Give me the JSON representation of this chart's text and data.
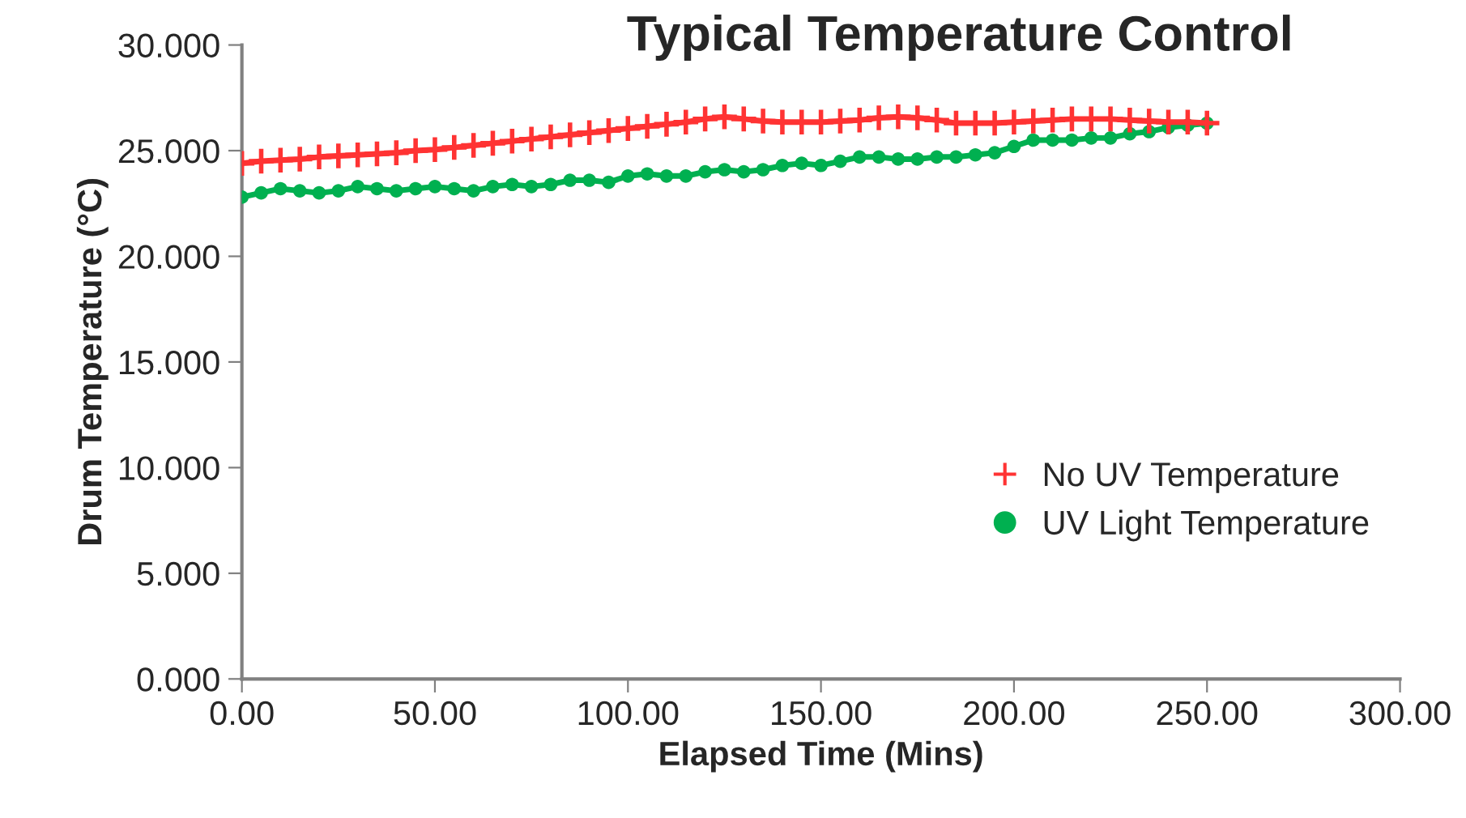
{
  "chart_data": {
    "type": "line",
    "title": "Typical Temperature Control",
    "xlabel": "Elapsed Time (Mins)",
    "ylabel": "Drum Temperature (°C)",
    "x": [
      0,
      5,
      10,
      15,
      20,
      25,
      30,
      35,
      40,
      45,
      50,
      55,
      60,
      65,
      70,
      75,
      80,
      85,
      90,
      95,
      100,
      105,
      110,
      115,
      120,
      125,
      130,
      135,
      140,
      145,
      150,
      155,
      160,
      165,
      170,
      175,
      180,
      185,
      190,
      195,
      200,
      205,
      210,
      215,
      220,
      225,
      230,
      235,
      240,
      245,
      250
    ],
    "series": [
      {
        "name": "No UV Temperature",
        "color": "#ff3333",
        "marker": "cross",
        "values": [
          24.4,
          24.5,
          24.55,
          24.6,
          24.7,
          24.75,
          24.8,
          24.85,
          24.9,
          25.0,
          25.05,
          25.15,
          25.25,
          25.35,
          25.45,
          25.55,
          25.65,
          25.75,
          25.85,
          25.95,
          26.05,
          26.15,
          26.25,
          26.35,
          26.5,
          26.6,
          26.5,
          26.4,
          26.35,
          26.35,
          26.35,
          26.4,
          26.45,
          26.55,
          26.6,
          26.55,
          26.45,
          26.3,
          26.3,
          26.3,
          26.35,
          26.4,
          26.45,
          26.5,
          26.5,
          26.5,
          26.45,
          26.4,
          26.35,
          26.35,
          26.3
        ]
      },
      {
        "name": "UV Light Temperature",
        "color": "#00b050",
        "marker": "circle",
        "values": [
          22.8,
          23.0,
          23.2,
          23.1,
          23.0,
          23.1,
          23.3,
          23.2,
          23.1,
          23.2,
          23.3,
          23.2,
          23.1,
          23.3,
          23.4,
          23.3,
          23.4,
          23.6,
          23.6,
          23.5,
          23.8,
          23.9,
          23.8,
          23.8,
          24.0,
          24.1,
          24.0,
          24.1,
          24.3,
          24.4,
          24.3,
          24.5,
          24.7,
          24.7,
          24.6,
          24.6,
          24.7,
          24.7,
          24.8,
          24.9,
          25.2,
          25.5,
          25.5,
          25.5,
          25.6,
          25.6,
          25.8,
          25.9,
          26.1,
          26.2,
          26.3
        ]
      }
    ],
    "xlim": [
      0,
      300
    ],
    "xticks": [
      {
        "value": 0,
        "label": "0.00"
      },
      {
        "value": 50,
        "label": "50.00"
      },
      {
        "value": 100,
        "label": "100.00"
      },
      {
        "value": 150,
        "label": "150.00"
      },
      {
        "value": 200,
        "label": "200.00"
      },
      {
        "value": 250,
        "label": "250.00"
      },
      {
        "value": 300,
        "label": "300.00"
      }
    ],
    "ylim": [
      0,
      30
    ],
    "yticks": [
      {
        "value": 0,
        "label": "0.000"
      },
      {
        "value": 5,
        "label": "5.000"
      },
      {
        "value": 10,
        "label": "10.000"
      },
      {
        "value": 15,
        "label": "15.000"
      },
      {
        "value": 20,
        "label": "20.000"
      },
      {
        "value": 25,
        "label": "25.000"
      },
      {
        "value": 30,
        "label": "30.000"
      }
    ],
    "grid": false,
    "legend": "center right"
  }
}
